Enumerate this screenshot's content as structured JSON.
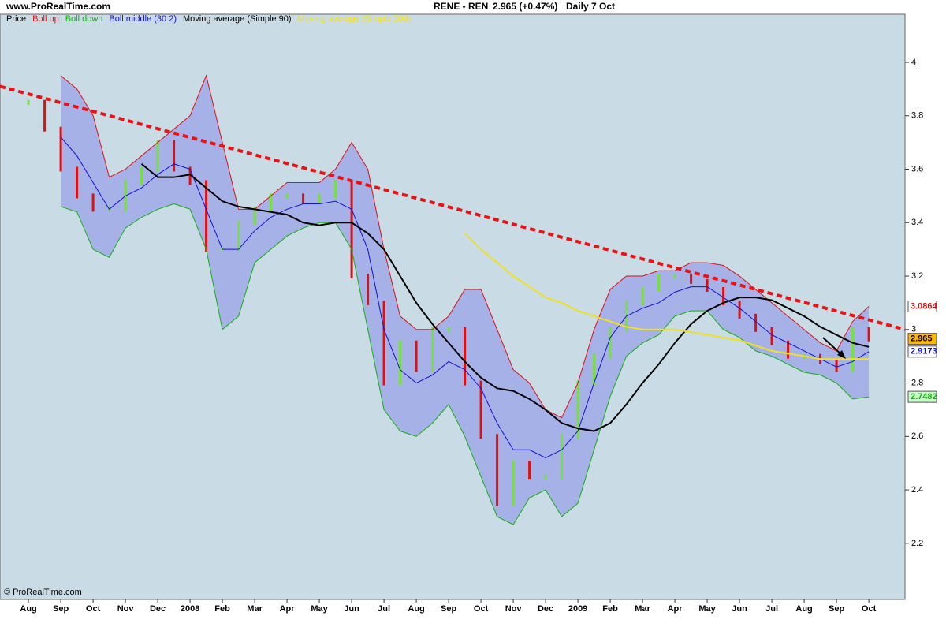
{
  "header": {
    "site": "www.ProRealTime.com",
    "instrument": "RENE - REN",
    "quote": "2.965 (+0.47%)",
    "period": "Daily  7 Oct"
  },
  "footer": "© ProRealTime.com",
  "chart_data": {
    "type": "line",
    "xlim": [
      -0.88,
      27.12
    ],
    "ylim": [
      1.99,
      4.18
    ],
    "yticks": [
      2.2,
      2.4,
      2.6,
      2.8,
      3,
      3.2,
      3.4,
      3.6,
      3.8,
      4
    ],
    "xticks": [
      {
        "value": 0,
        "label": "Aug"
      },
      {
        "value": 1,
        "label": "Sep"
      },
      {
        "value": 2,
        "label": "Oct"
      },
      {
        "value": 3,
        "label": "Nov"
      },
      {
        "value": 4,
        "label": "Dec"
      },
      {
        "value": 5,
        "label": "2008"
      },
      {
        "value": 6,
        "label": "Feb"
      },
      {
        "value": 7,
        "label": "Mar"
      },
      {
        "value": 8,
        "label": "Apr"
      },
      {
        "value": 9,
        "label": "May"
      },
      {
        "value": 10,
        "label": "Jun"
      },
      {
        "value": 11,
        "label": "Jul"
      },
      {
        "value": 12,
        "label": "Aug"
      },
      {
        "value": 13,
        "label": "Sep"
      },
      {
        "value": 14,
        "label": "Oct"
      },
      {
        "value": 15,
        "label": "Nov"
      },
      {
        "value": 16,
        "label": "Dec"
      },
      {
        "value": 17,
        "label": "2009"
      },
      {
        "value": 18,
        "label": "Feb"
      },
      {
        "value": 19,
        "label": "Mar"
      },
      {
        "value": 20,
        "label": "Apr"
      },
      {
        "value": 21,
        "label": "May"
      },
      {
        "value": 22,
        "label": "Jun"
      },
      {
        "value": 23,
        "label": "Jul"
      },
      {
        "value": 24,
        "label": "Aug"
      },
      {
        "value": 25,
        "label": "Sep"
      },
      {
        "value": 26,
        "label": "Oct"
      }
    ],
    "x": [
      0,
      0.5,
      1,
      1.5,
      2,
      2.5,
      3,
      3.5,
      4,
      4.5,
      5,
      5.5,
      6,
      6.5,
      7,
      7.5,
      8,
      8.5,
      9,
      9.5,
      10,
      10.5,
      11,
      11.5,
      12,
      12.5,
      13,
      13.5,
      14,
      14.5,
      15,
      15.5,
      16,
      16.5,
      17,
      17.5,
      18,
      18.5,
      19,
      19.5,
      20,
      20.5,
      21,
      21.5,
      22,
      22.5,
      23,
      23.5,
      24,
      24.5,
      25,
      25.5,
      26
    ],
    "band_color": "#a6b1e8",
    "series": [
      {
        "name": "Price",
        "style": "bars",
        "color": "#dd1111",
        "up_color": "#77e040",
        "legend_color": "#000000",
        "values": [
          3.85,
          3.75,
          3.6,
          3.5,
          3.45,
          3.45,
          3.55,
          3.6,
          3.7,
          3.6,
          3.55,
          3.3,
          3.3,
          3.4,
          3.45,
          3.5,
          3.5,
          3.48,
          3.5,
          3.55,
          3.2,
          3.1,
          2.8,
          2.95,
          2.85,
          3.0,
          3.0,
          2.8,
          2.6,
          2.35,
          2.5,
          2.45,
          2.45,
          2.6,
          2.8,
          2.9,
          3.0,
          3.1,
          3.15,
          3.2,
          3.2,
          3.18,
          3.15,
          3.1,
          3.05,
          3.0,
          2.95,
          2.9,
          2.9,
          2.88,
          2.85,
          3.0,
          2.965
        ],
        "last_label": "2.965",
        "label_bg": "#ffb800"
      },
      {
        "name": "Boll up",
        "style": "band-upper",
        "color": "#e01010",
        "values": [
          null,
          null,
          3.95,
          3.9,
          3.8,
          3.57,
          3.6,
          3.65,
          3.7,
          3.75,
          3.8,
          3.95,
          3.7,
          3.45,
          3.45,
          3.5,
          3.55,
          3.55,
          3.55,
          3.6,
          3.7,
          3.6,
          3.3,
          3.05,
          3.0,
          3.0,
          3.05,
          3.15,
          3.15,
          3.0,
          2.85,
          2.8,
          2.7,
          2.67,
          2.8,
          3.0,
          3.15,
          3.2,
          3.2,
          3.22,
          3.22,
          3.25,
          3.25,
          3.24,
          3.2,
          3.15,
          3.1,
          3.05,
          3.0,
          2.95,
          2.92,
          3.03,
          3.0864
        ],
        "last_label": "3.0864",
        "label_bg": "#ffffff"
      },
      {
        "name": "Boll down",
        "style": "band-lower",
        "color": "#10b010",
        "values": [
          null,
          null,
          3.46,
          3.44,
          3.3,
          3.27,
          3.38,
          3.42,
          3.45,
          3.47,
          3.45,
          3.3,
          3.0,
          3.05,
          3.25,
          3.3,
          3.35,
          3.38,
          3.4,
          3.4,
          3.3,
          3.0,
          2.7,
          2.62,
          2.6,
          2.65,
          2.72,
          2.6,
          2.45,
          2.3,
          2.27,
          2.37,
          2.4,
          2.3,
          2.35,
          2.55,
          2.75,
          2.9,
          2.95,
          2.98,
          3.05,
          3.07,
          3.07,
          3.0,
          2.97,
          2.92,
          2.9,
          2.87,
          2.84,
          2.83,
          2.8,
          2.74,
          2.7482
        ],
        "last_label": "2.7482",
        "label_bg": "#ccffcc"
      },
      {
        "name": "Boll middle (30 2)",
        "style": "line",
        "color": "#1010d0",
        "values": [
          null,
          null,
          3.72,
          3.65,
          3.55,
          3.45,
          3.5,
          3.53,
          3.58,
          3.62,
          3.6,
          3.45,
          3.3,
          3.3,
          3.37,
          3.42,
          3.45,
          3.47,
          3.47,
          3.48,
          3.45,
          3.3,
          3.0,
          2.85,
          2.8,
          2.83,
          2.88,
          2.85,
          2.78,
          2.65,
          2.55,
          2.55,
          2.52,
          2.55,
          2.62,
          2.8,
          2.97,
          3.05,
          3.08,
          3.1,
          3.14,
          3.16,
          3.16,
          3.12,
          3.08,
          3.03,
          2.98,
          2.95,
          2.92,
          2.89,
          2.86,
          2.88,
          2.9173
        ],
        "last_label": "2.9173",
        "label_bg": "#ffffff"
      },
      {
        "name": "Moving average (Simple 90)",
        "style": "line",
        "color": "#000000",
        "width": 2,
        "values": [
          null,
          null,
          null,
          null,
          null,
          null,
          null,
          3.62,
          3.57,
          3.57,
          3.58,
          3.53,
          3.48,
          3.46,
          3.45,
          3.44,
          3.43,
          3.4,
          3.39,
          3.4,
          3.4,
          3.36,
          3.3,
          3.2,
          3.1,
          3.02,
          2.95,
          2.88,
          2.82,
          2.78,
          2.77,
          2.74,
          2.7,
          2.65,
          2.63,
          2.62,
          2.65,
          2.72,
          2.8,
          2.87,
          2.95,
          3.02,
          3.07,
          3.1,
          3.12,
          3.12,
          3.11,
          3.08,
          3.05,
          3.01,
          2.98,
          2.95,
          2.935
        ]
      },
      {
        "name": "Moving average (Simple 200)",
        "style": "line",
        "color": "#f0e020",
        "width": 2,
        "values": [
          null,
          null,
          null,
          null,
          null,
          null,
          null,
          null,
          null,
          null,
          null,
          null,
          null,
          null,
          null,
          null,
          null,
          null,
          null,
          null,
          null,
          null,
          null,
          null,
          null,
          null,
          null,
          3.36,
          3.3,
          3.25,
          3.2,
          3.16,
          3.12,
          3.1,
          3.07,
          3.05,
          3.03,
          3.01,
          3.0,
          3.0,
          3.0,
          2.99,
          2.98,
          2.97,
          2.96,
          2.94,
          2.92,
          2.91,
          2.9,
          2.89,
          2.89,
          2.89,
          2.89
        ]
      }
    ],
    "trendline": {
      "x": [
        -0.88,
        27.12
      ],
      "values": [
        3.91,
        3.0
      ],
      "color": "#ee1111"
    }
  }
}
